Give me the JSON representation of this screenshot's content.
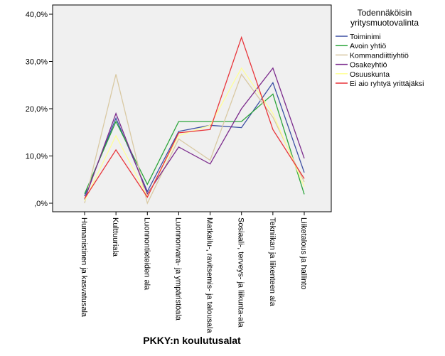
{
  "chart_data": {
    "type": "line",
    "title": "",
    "xlabel": "PKKY:n koulutusalat",
    "ylabel": "",
    "ylim": [
      0,
      40
    ],
    "yticks": [
      0,
      10,
      20,
      30,
      40
    ],
    "ytick_labels": [
      ",0%",
      "10,0%",
      "20,0%",
      "30,0%",
      "40,0%"
    ],
    "grid": false,
    "legend_position": "right",
    "legend_title_lines": [
      "Todennäköisin",
      "yritysmuotovalinta"
    ],
    "categories": [
      "Humanistinen ja kasvatusala",
      "Kulttuuriala",
      "Luonnontieteiden ala",
      "Luonnonvara- ja ympäristöala",
      "Matkailu-, ravitsemis- ja talousala",
      "Sosiaali-, terveys- ja liikunta-ala",
      "Tekniikan ja liikenteen ala",
      "Liiketalous ja hallinto"
    ],
    "series": [
      {
        "name": "Toiminimi",
        "color": "#3b4ea3",
        "values": [
          1.5,
          18.0,
          2.5,
          15.2,
          16.5,
          16.0,
          25.5,
          6.5
        ]
      },
      {
        "name": "Avoin yhtiö",
        "color": "#2aa53a",
        "values": [
          2.0,
          17.3,
          4.0,
          17.3,
          17.3,
          17.3,
          23.1,
          1.9
        ]
      },
      {
        "name": "Kommandiittiyhtiö",
        "color": "#d9c9a3",
        "values": [
          0.0,
          27.3,
          0.0,
          13.6,
          9.1,
          27.3,
          18.2,
          4.5
        ]
      },
      {
        "name": "Osakeyhtiö",
        "color": "#7b2a8c",
        "values": [
          0.8,
          19.0,
          2.0,
          11.9,
          8.3,
          20.0,
          28.6,
          9.5
        ]
      },
      {
        "name": "Osuuskunta",
        "color": "#ffff99",
        "values": [
          0.5,
          14.3,
          1.5,
          14.3,
          16.5,
          28.6,
          19.0,
          3.5
        ]
      },
      {
        "name": "Ei aio ryhtyä yrittäjäksi",
        "color": "#e8343a",
        "values": [
          1.0,
          11.3,
          1.3,
          14.9,
          15.6,
          35.1,
          15.6,
          5.2
        ]
      }
    ]
  }
}
